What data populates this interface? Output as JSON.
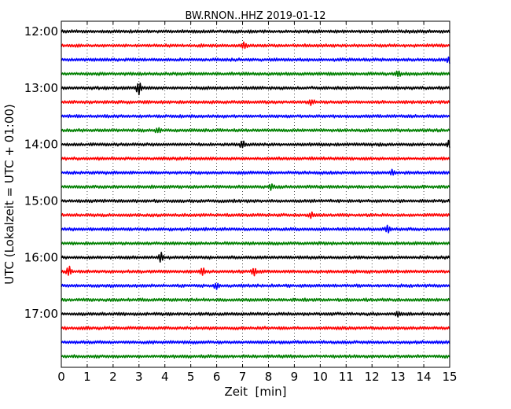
{
  "chart_data": {
    "type": "line",
    "title": "BW.RNON..HHZ 2019-01-12",
    "xlabel": "Zeit  [min]",
    "ylabel": "UTC (Lokalzeit = UTC + 01:00)",
    "xlim": [
      0,
      15
    ],
    "x_ticks": [
      0,
      1,
      2,
      3,
      4,
      5,
      6,
      7,
      8,
      9,
      10,
      11,
      12,
      13,
      14,
      15
    ],
    "x_tick_labels": [
      "0",
      "1",
      "2",
      "3",
      "4",
      "5",
      "6",
      "7",
      "8",
      "9",
      "10",
      "11",
      "12",
      "13",
      "14",
      "15"
    ],
    "y_tick_labels": [
      "12:00",
      "13:00",
      "14:00",
      "15:00",
      "16:00",
      "17:00"
    ],
    "y_tick_rows": [
      0,
      4,
      8,
      12,
      16,
      20
    ],
    "grid": "vertical dotted lines at each minute",
    "row_minutes": 15,
    "row_start_times": [
      "12:00",
      "12:15",
      "12:30",
      "12:45",
      "13:00",
      "13:15",
      "13:30",
      "13:45",
      "14:00",
      "14:15",
      "14:30",
      "14:45",
      "15:00",
      "15:15",
      "15:30",
      "15:45",
      "16:00",
      "16:15",
      "16:30",
      "16:45",
      "17:00",
      "17:15",
      "17:30",
      "17:45"
    ],
    "colors": [
      "#000000",
      "#ff0000",
      "#0000ff",
      "#008000"
    ],
    "events": [
      {
        "row": 4,
        "minute": 3.0,
        "amplitude": 8
      },
      {
        "row": 1,
        "minute": 7.05,
        "amplitude": 4
      },
      {
        "row": 16,
        "minute": 3.85,
        "amplitude": 5
      },
      {
        "row": 17,
        "minute": 0.3,
        "amplitude": 6
      },
      {
        "row": 17,
        "minute": 5.45,
        "amplitude": 5
      },
      {
        "row": 17,
        "minute": 7.45,
        "amplitude": 4
      },
      {
        "row": 8,
        "minute": 7.0,
        "amplitude": 4
      },
      {
        "row": 8,
        "minute": 15.0,
        "amplitude": 5
      },
      {
        "row": 14,
        "minute": 12.6,
        "amplitude": 4
      },
      {
        "row": 2,
        "minute": 15.0,
        "amplitude": 4
      },
      {
        "row": 5,
        "minute": 9.65,
        "amplitude": 3
      },
      {
        "row": 10,
        "minute": 12.8,
        "amplitude": 3
      },
      {
        "row": 11,
        "minute": 8.1,
        "amplitude": 3
      },
      {
        "row": 3,
        "minute": 13.0,
        "amplitude": 3
      },
      {
        "row": 7,
        "minute": 3.75,
        "amplitude": 3
      },
      {
        "row": 13,
        "minute": 9.65,
        "amplitude": 3
      },
      {
        "row": 18,
        "minute": 6.0,
        "amplitude": 3
      },
      {
        "row": 20,
        "minute": 13.0,
        "amplitude": 3
      }
    ]
  }
}
